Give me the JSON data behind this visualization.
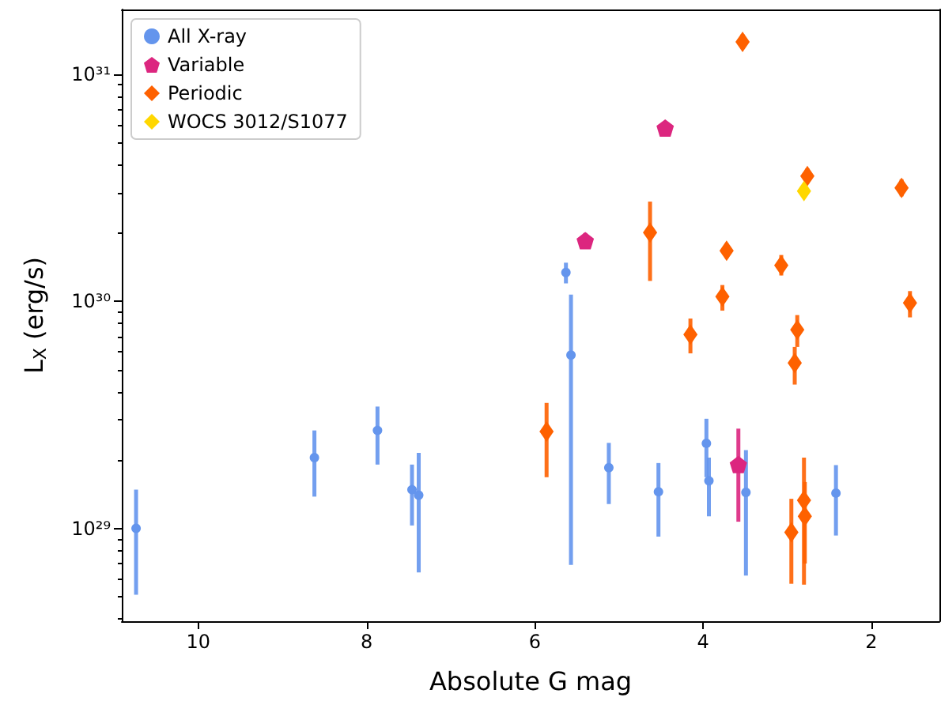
{
  "chart_data": {
    "type": "scatter",
    "xlabel": "Absolute G mag",
    "ylabel": "L$_{X}$ (erg/s)",
    "log": "y",
    "grid": false,
    "legend": "top left",
    "xlim": [
      10.91,
      1.19
    ],
    "xticks": [
      10,
      8,
      6,
      4,
      2
    ],
    "ylim": [
      3.9e+28,
      1.93e+31
    ],
    "yticks": [
      {
        "value": 4e+28,
        "label": null
      },
      {
        "value": 5e+28,
        "label": null
      },
      {
        "value": 6e+28,
        "label": null
      },
      {
        "value": 7e+28,
        "label": null
      },
      {
        "value": 8e+28,
        "label": null
      },
      {
        "value": 9e+28,
        "label": null
      },
      {
        "value": 1e+29,
        "label": "10²⁹"
      },
      {
        "value": 2e+29,
        "label": null
      },
      {
        "value": 3e+29,
        "label": null
      },
      {
        "value": 4e+29,
        "label": null
      },
      {
        "value": 5e+29,
        "label": null
      },
      {
        "value": 6e+29,
        "label": null
      },
      {
        "value": 7e+29,
        "label": null
      },
      {
        "value": 8e+29,
        "label": null
      },
      {
        "value": 9e+29,
        "label": null
      },
      {
        "value": 1e+30,
        "label": "10³⁰"
      },
      {
        "value": 2e+30,
        "label": null
      },
      {
        "value": 3e+30,
        "label": null
      },
      {
        "value": 4e+30,
        "label": null
      },
      {
        "value": 5e+30,
        "label": null
      },
      {
        "value": 6e+30,
        "label": null
      },
      {
        "value": 7e+30,
        "label": null
      },
      {
        "value": 8e+30,
        "label": null
      },
      {
        "value": 9e+30,
        "label": null
      },
      {
        "value": 1e+31,
        "label": "10³¹"
      }
    ],
    "series": [
      {
        "name": "All X-ray",
        "color": "#6495ed",
        "marker": "circle",
        "x": [
          10.74,
          8.62,
          7.87,
          7.46,
          7.38,
          5.63,
          5.57,
          5.12,
          4.53,
          3.96,
          3.93,
          3.49,
          2.42
        ],
        "values": [
          1e+29,
          2.05e+29,
          2.7e+29,
          1.48e+29,
          1.4e+29,
          1.34e+30,
          5.8e+29,
          1.85e+29,
          1.45e+29,
          2.37e+29,
          1.62e+29,
          1.44e+29,
          1.43e+29
        ],
        "errors": [
          [
            5.1e+28,
            1.48e+29
          ],
          [
            1.38e+29,
            2.7e+29
          ],
          [
            1.91e+29,
            3.44e+29
          ],
          [
            1.03e+29,
            1.91e+29
          ],
          [
            6.4e+28,
            2.15e+29
          ],
          [
            1.2e+30,
            1.48e+30
          ],
          [
            6.9e+28,
            1.07e+30
          ],
          [
            1.28e+29,
            2.38e+29
          ],
          [
            9.2e+28,
            1.94e+29
          ],
          [
            1.68e+29,
            3.04e+29
          ],
          [
            1.13e+29,
            2.05e+29
          ],
          [
            6.2e+28,
            2.21e+29
          ],
          [
            9.3e+28,
            1.9e+29
          ]
        ]
      },
      {
        "name": "Variable",
        "color": "#dc267f",
        "x": [
          5.4,
          4.45,
          3.58
        ],
        "values": [
          1.85e+30,
          5.8e+30,
          1.91e+29
        ],
        "errors": [
          [
            1.72e+30,
            2e+30
          ],
          null,
          [
            1.07e+29,
            2.75e+29
          ]
        ]
      },
      {
        "name": "Periodic",
        "color": "#fe6100",
        "marker": "diamond",
        "x": [
          3.53,
          4.63,
          3.72,
          2.76,
          1.64,
          3.07,
          3.77,
          1.54,
          4.15,
          2.88,
          2.91,
          5.86,
          2.8,
          2.79,
          2.95
        ],
        "values": [
          1.39e+31,
          2.01e+30,
          1.67e+30,
          3.56e+30,
          3.16e+30,
          1.44e+30,
          1.05e+30,
          9.85e+29,
          7.15e+29,
          7.5e+29,
          5.35e+29,
          2.67e+29,
          1.33e+29,
          1.13e+29,
          9.6e+28
        ],
        "errors": [
          [
            1.3e+31,
            1.5e+31
          ],
          [
            1.23e+30,
            2.75e+30
          ],
          [
            1.55e+30,
            1.8e+30
          ],
          [
            3.3e+30,
            3.85e+30
          ],
          [
            2.9e+30,
            3.45e+30
          ],
          [
            1.3e+30,
            1.6e+30
          ],
          [
            9.1e+29,
            1.18e+30
          ],
          [
            8.5e+29,
            1.11e+30
          ],
          [
            5.9e+29,
            8.4e+29
          ],
          [
            6.3e+29,
            8.7e+29
          ],
          [
            4.3e+29,
            6.3e+29
          ],
          [
            1.68e+29,
            3.57e+29
          ],
          [
            5.65e+28,
            2.05e+29
          ],
          [
            7e+28,
            1.6e+29
          ],
          [
            5.7e+28,
            1.35e+29
          ]
        ]
      },
      {
        "name": "WOCS 3012/S1077",
        "color": "#ffd700",
        "marker": "diamond",
        "x": [
          2.8
        ],
        "values": [
          3.06e+30
        ],
        "errors": [
          [
            2.85e+30,
            3.3e+30
          ]
        ]
      }
    ]
  }
}
